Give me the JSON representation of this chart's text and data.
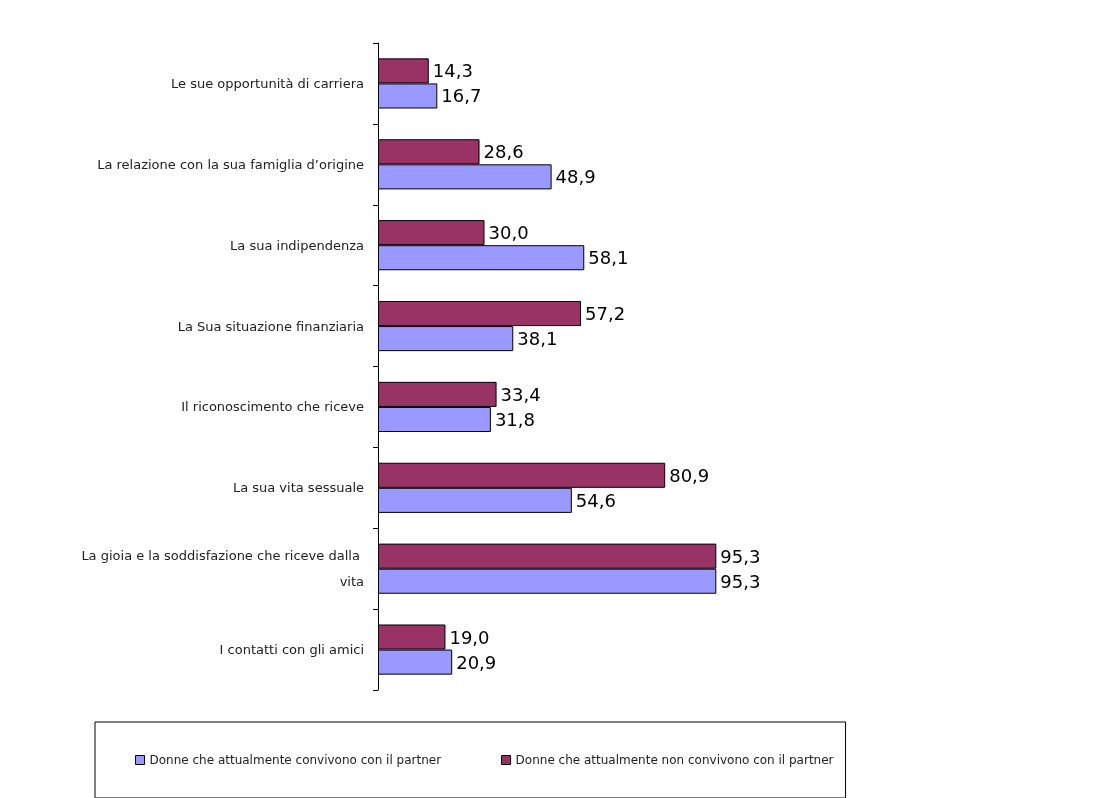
{
  "chart_data": {
    "type": "bar",
    "orientation": "horizontal",
    "categories": [
      "Le sue opportunità di carriera",
      "La relazione con la sua famiglia d’origine",
      "La sua indipendenza",
      "La Sua situazione finanziaria",
      "Il riconoscimento che riceve",
      "La sua vita sessuale",
      "La gioia e la soddisfazione che riceve dalla vita",
      "I contatti con gli amici"
    ],
    "series": [
      {
        "name": "Donne che attualmente convivono con il partner",
        "color": "#9999ff",
        "values": [
          16.7,
          48.9,
          58.1,
          38.1,
          31.8,
          54.6,
          95.3,
          20.9
        ],
        "value_labels": [
          "16,7",
          "48,9",
          "58,1",
          "38,1",
          "31,8",
          "54,6",
          "95,3",
          "20,9"
        ]
      },
      {
        "name": "Donne che attualmente non convivono con il partner",
        "color": "#993366",
        "values": [
          14.3,
          28.6,
          30.0,
          57.2,
          33.4,
          80.9,
          95.3,
          19.0
        ],
        "value_labels": [
          "14,3",
          "28,6",
          "30,0",
          "57,2",
          "33,4",
          "80,9",
          "95,3",
          "19,0"
        ]
      }
    ],
    "legend": "bottom",
    "grid": false
  }
}
